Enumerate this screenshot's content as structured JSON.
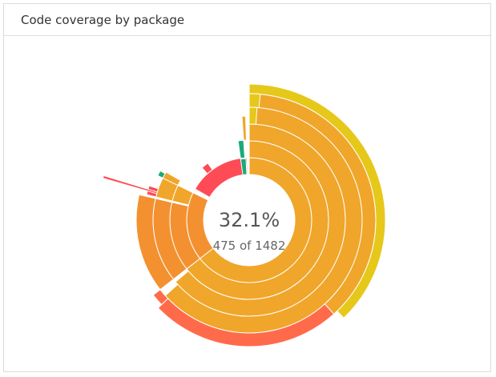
{
  "card": {
    "title": "Code coverage by package"
  },
  "center": {
    "percent_label": "32.1%",
    "count_label": "475 of 1482"
  },
  "palette": {
    "bright_yellow": "#e6c81a",
    "orange": "#f0a62a",
    "dark_orange": "#f39130",
    "coral": "#ff6b4a",
    "red": "#ff4b55",
    "green": "#1aaa7a"
  },
  "chart_data": {
    "type": "sunburst",
    "center_value": 32.1,
    "covered": 475,
    "total": 1482
  }
}
